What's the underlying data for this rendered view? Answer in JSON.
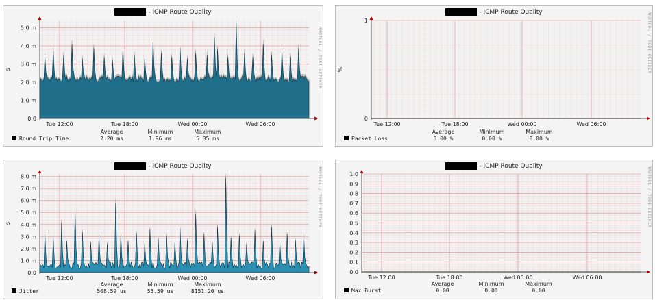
{
  "chart_data": [
    {
      "type": "area",
      "title": "- ICMP Route Quality",
      "side_text": "RRDTOOL / TOBI OETIKER",
      "ylabel": "s",
      "yticks": [
        "0.0",
        "1.0 m",
        "2.0 m",
        "3.0 m",
        "4.0 m",
        "5.0 m"
      ],
      "ylim": [
        0,
        5.4
      ],
      "xticks": [
        "Tue 12:00",
        "Tue 18:00",
        "Wed 00:00",
        "Wed 06:00"
      ],
      "series": [
        {
          "name": "Round Trip Time",
          "color": "#1f6f8b",
          "average": "2.20 ms",
          "minimum": "1.96 ms",
          "maximum": "5.35 ms"
        }
      ],
      "stat_headers": [
        "Average",
        "Minimum",
        "Maximum"
      ],
      "baseline": 2.0,
      "noise": 0.35,
      "spikes": [
        [
          0.02,
          3.4
        ],
        [
          0.05,
          3.7
        ],
        [
          0.09,
          3.5
        ],
        [
          0.12,
          4.1
        ],
        [
          0.16,
          3.3
        ],
        [
          0.2,
          3.9
        ],
        [
          0.24,
          3.4
        ],
        [
          0.27,
          3.2
        ],
        [
          0.31,
          3.8
        ],
        [
          0.35,
          3.5
        ],
        [
          0.39,
          3.3
        ],
        [
          0.42,
          4.2
        ],
        [
          0.45,
          3.6
        ],
        [
          0.49,
          3.4
        ],
        [
          0.52,
          3.9
        ],
        [
          0.55,
          3.3
        ],
        [
          0.58,
          3.6
        ],
        [
          0.62,
          3.5
        ],
        [
          0.65,
          4.5
        ],
        [
          0.66,
          3.8
        ],
        [
          0.7,
          3.4
        ],
        [
          0.73,
          5.3
        ],
        [
          0.76,
          3.6
        ],
        [
          0.79,
          3.4
        ],
        [
          0.83,
          4.1
        ],
        [
          0.86,
          3.5
        ],
        [
          0.9,
          3.7
        ],
        [
          0.93,
          3.4
        ],
        [
          0.96,
          3.9
        ]
      ]
    },
    {
      "type": "line",
      "title": "- ICMP Route Quality",
      "side_text": "RRDTOOL / TOBI OETIKER",
      "ylabel": "%",
      "yticks": [
        "0",
        "1"
      ],
      "ylim": [
        0,
        1
      ],
      "xticks": [
        "Tue 12:00",
        "Tue 18:00",
        "Wed 00:00",
        "Wed 06:00"
      ],
      "series": [
        {
          "name": "Packet Loss",
          "color": "#000000",
          "average": "0.00  %",
          "minimum": "0.00  %",
          "maximum": "0.00  %"
        }
      ],
      "stat_headers": [
        "Average",
        "Minimum",
        "Maximum"
      ]
    },
    {
      "type": "area",
      "title": "- ICMP Route Quality",
      "side_text": "RRDTOOL / TOBI OETIKER",
      "ylabel": "s",
      "yticks": [
        "0.0",
        "1.0 m",
        "2.0 m",
        "3.0 m",
        "4.0 m",
        "5.0 m",
        "6.0 m",
        "7.0 m",
        "8.0 m"
      ],
      "ylim": [
        0,
        8.2
      ],
      "xticks": [
        "Tue 12:00",
        "Tue 18:00",
        "Wed 00:00",
        "Wed 06:00"
      ],
      "series": [
        {
          "name": "Jitter",
          "color": "#2a8fb0",
          "average": "508.59 us",
          "minimum": "55.59 us",
          "maximum": "8151.20 us"
        }
      ],
      "stat_headers": [
        "Average",
        "Minimum",
        "Maximum"
      ],
      "baseline": 0.3,
      "noise": 0.6,
      "spikes": [
        [
          0.02,
          3.2
        ],
        [
          0.05,
          2.8
        ],
        [
          0.08,
          4.2
        ],
        [
          0.1,
          2.6
        ],
        [
          0.13,
          5.1
        ],
        [
          0.16,
          3.4
        ],
        [
          0.19,
          2.5
        ],
        [
          0.22,
          3.0
        ],
        [
          0.25,
          2.4
        ],
        [
          0.28,
          5.8
        ],
        [
          0.3,
          3.1
        ],
        [
          0.33,
          2.6
        ],
        [
          0.36,
          3.3
        ],
        [
          0.39,
          2.4
        ],
        [
          0.41,
          3.6
        ],
        [
          0.44,
          2.8
        ],
        [
          0.47,
          3.1
        ],
        [
          0.5,
          2.5
        ],
        [
          0.52,
          3.7
        ],
        [
          0.55,
          2.7
        ],
        [
          0.58,
          4.9
        ],
        [
          0.61,
          3.2
        ],
        [
          0.64,
          2.5
        ],
        [
          0.66,
          3.8
        ],
        [
          0.69,
          7.9
        ],
        [
          0.71,
          2.9
        ],
        [
          0.74,
          3.1
        ],
        [
          0.77,
          2.4
        ],
        [
          0.8,
          3.5
        ],
        [
          0.83,
          2.6
        ],
        [
          0.86,
          3.8
        ],
        [
          0.89,
          2.5
        ],
        [
          0.92,
          3.2
        ],
        [
          0.95,
          2.7
        ],
        [
          0.98,
          3.0
        ]
      ]
    },
    {
      "type": "line",
      "title": "- ICMP Route Quality",
      "side_text": "RRDTOOL / TOBI OETIKER",
      "ylabel": "",
      "yticks": [
        "0.0",
        "0.1",
        "0.2",
        "0.3",
        "0.4",
        "0.5",
        "0.6",
        "0.7",
        "0.8",
        "0.9",
        "1.0"
      ],
      "ylim": [
        0,
        1
      ],
      "xticks": [
        "Tue 12:00",
        "Tue 18:00",
        "Wed 00:00",
        "Wed 06:00"
      ],
      "series": [
        {
          "name": "Max Burst",
          "color": "#000000",
          "average": "0.00",
          "minimum": "0.00",
          "maximum": "0.00"
        }
      ],
      "stat_headers": [
        "Average",
        "Minimum",
        "Maximum"
      ]
    }
  ]
}
